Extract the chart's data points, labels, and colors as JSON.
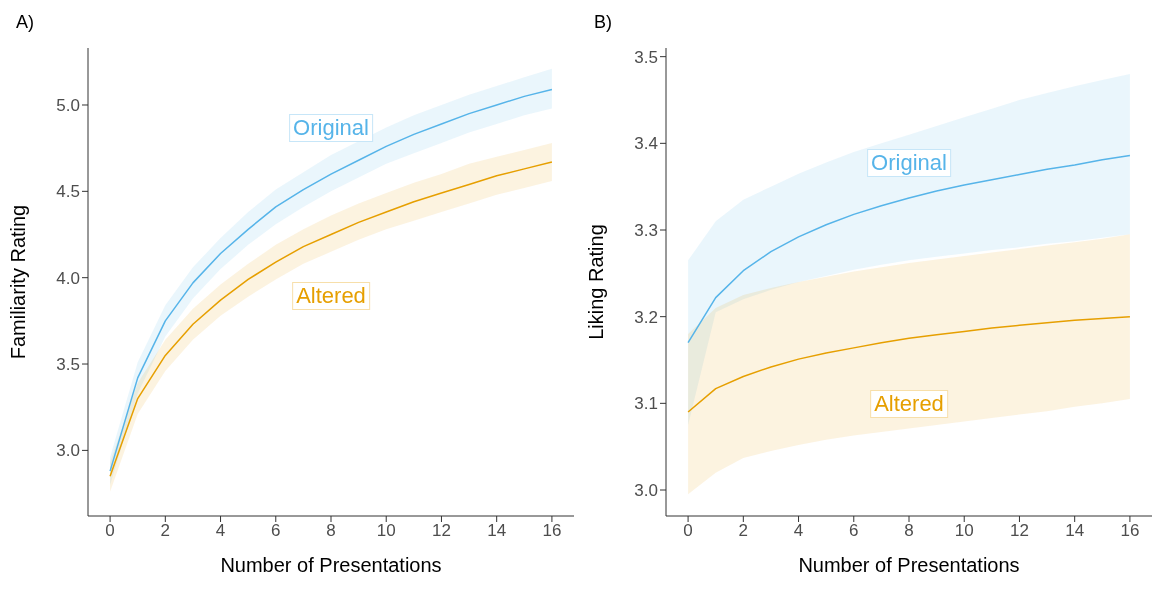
{
  "chart_data": [
    {
      "type": "line",
      "title": "A)",
      "xlabel": "Number of Presentations",
      "ylabel": "Familiarity Rating",
      "x": [
        0,
        1,
        2,
        3,
        4,
        5,
        6,
        7,
        8,
        9,
        10,
        11,
        12,
        13,
        14,
        15,
        16
      ],
      "series": [
        {
          "name": "Original",
          "color": "#56b4e9",
          "values": [
            2.88,
            3.42,
            3.75,
            3.97,
            4.14,
            4.28,
            4.41,
            4.51,
            4.6,
            4.68,
            4.76,
            4.83,
            4.89,
            4.95,
            5.0,
            5.05,
            5.09
          ],
          "lower": [
            2.8,
            3.33,
            3.66,
            3.88,
            4.05,
            4.19,
            4.31,
            4.41,
            4.5,
            4.58,
            4.66,
            4.72,
            4.78,
            4.84,
            4.89,
            4.94,
            4.98
          ],
          "upper": [
            2.96,
            3.51,
            3.84,
            4.06,
            4.23,
            4.38,
            4.51,
            4.61,
            4.71,
            4.79,
            4.87,
            4.94,
            5.0,
            5.06,
            5.11,
            5.16,
            5.21
          ]
        },
        {
          "name": "Altered",
          "color": "#e69f00",
          "values": [
            2.85,
            3.3,
            3.55,
            3.73,
            3.87,
            3.99,
            4.09,
            4.18,
            4.25,
            4.32,
            4.38,
            4.44,
            4.49,
            4.54,
            4.59,
            4.63,
            4.67
          ],
          "lower": [
            2.76,
            3.21,
            3.46,
            3.64,
            3.78,
            3.89,
            3.99,
            4.08,
            4.15,
            4.22,
            4.28,
            4.33,
            4.38,
            4.43,
            4.48,
            4.52,
            4.56
          ],
          "upper": [
            2.93,
            3.39,
            3.64,
            3.82,
            3.96,
            4.08,
            4.19,
            4.28,
            4.36,
            4.43,
            4.49,
            4.55,
            4.6,
            4.66,
            4.7,
            4.74,
            4.78
          ]
        }
      ],
      "xlim": [
        -0.8,
        16.8
      ],
      "xticks": [
        0,
        2,
        4,
        6,
        8,
        10,
        12,
        14,
        16
      ],
      "ylim": [
        2.62,
        5.33
      ],
      "yticks": [
        {
          "value": 3,
          "label": "3.0"
        },
        {
          "value": 3.5,
          "label": "3.5"
        },
        {
          "value": 4,
          "label": "4.0"
        },
        {
          "value": 4.5,
          "label": "4.5"
        },
        {
          "value": 5,
          "label": "5.0"
        }
      ],
      "grid": false,
      "legend": false
    },
    {
      "type": "line",
      "title": "B)",
      "xlabel": "Number of Presentations",
      "ylabel": "Liking Rating",
      "x": [
        0,
        1,
        2,
        3,
        4,
        5,
        6,
        7,
        8,
        9,
        10,
        11,
        12,
        13,
        14,
        15,
        16
      ],
      "series": [
        {
          "name": "Original",
          "color": "#56b4e9",
          "values": [
            3.17,
            3.222,
            3.253,
            3.275,
            3.292,
            3.306,
            3.318,
            3.328,
            3.337,
            3.345,
            3.352,
            3.358,
            3.364,
            3.37,
            3.375,
            3.381,
            3.386
          ],
          "lower": [
            3.075,
            3.205,
            3.22,
            3.231,
            3.24,
            3.247,
            3.254,
            3.26,
            3.265,
            3.269,
            3.273,
            3.277,
            3.28,
            3.284,
            3.287,
            3.291,
            3.295
          ],
          "upper": [
            3.265,
            3.31,
            3.335,
            3.35,
            3.365,
            3.378,
            3.39,
            3.4,
            3.41,
            3.42,
            3.43,
            3.44,
            3.45,
            3.458,
            3.466,
            3.473,
            3.48
          ]
        },
        {
          "name": "Altered",
          "color": "#e69f00",
          "values": [
            3.09,
            3.117,
            3.131,
            3.142,
            3.151,
            3.158,
            3.164,
            3.17,
            3.175,
            3.179,
            3.183,
            3.187,
            3.19,
            3.193,
            3.196,
            3.198,
            3.2
          ],
          "lower": [
            2.995,
            3.02,
            3.037,
            3.045,
            3.052,
            3.058,
            3.063,
            3.067,
            3.071,
            3.075,
            3.079,
            3.083,
            3.087,
            3.091,
            3.096,
            3.1,
            3.105
          ],
          "upper": [
            3.18,
            3.21,
            3.225,
            3.233,
            3.24,
            3.246,
            3.252,
            3.257,
            3.262,
            3.266,
            3.27,
            3.274,
            3.278,
            3.282,
            3.286,
            3.29,
            3.295
          ]
        }
      ],
      "xlim": [
        -0.8,
        16.8
      ],
      "xticks": [
        0,
        2,
        4,
        6,
        8,
        10,
        12,
        14,
        16
      ],
      "ylim": [
        2.97,
        3.51
      ],
      "yticks": [
        {
          "value": 3,
          "label": "3.0"
        },
        {
          "value": 3.1,
          "label": "3.1"
        },
        {
          "value": 3.2,
          "label": "3.2"
        },
        {
          "value": 3.3,
          "label": "3.3"
        },
        {
          "value": 3.4,
          "label": "3.4"
        },
        {
          "value": 3.5,
          "label": "3.5"
        }
      ],
      "grid": false,
      "legend": false
    }
  ]
}
